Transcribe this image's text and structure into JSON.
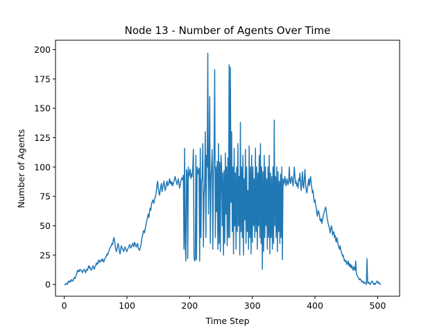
{
  "chart_data": {
    "type": "line",
    "title": "Node 13 - Number of Agents Over Time",
    "xlabel": "Time Step",
    "ylabel": "Number of Agents",
    "xlim": [
      -14,
      535
    ],
    "ylim": [
      -10,
      208
    ],
    "xticks": [
      0,
      100,
      200,
      300,
      400,
      500
    ],
    "yticks": [
      0,
      25,
      50,
      75,
      100,
      125,
      150,
      175,
      200
    ],
    "grid": false,
    "line_color": "#1f77b4",
    "series": [
      {
        "values": [
          0,
          0,
          0,
          1,
          1,
          0,
          2,
          3,
          2,
          3,
          2,
          4,
          4,
          3,
          3,
          5,
          6,
          5,
          6,
          8,
          9,
          12,
          11,
          12,
          11,
          13,
          12,
          12,
          11,
          10,
          12,
          12,
          13,
          11,
          10,
          12,
          13,
          12,
          14,
          16,
          14,
          15,
          13,
          12,
          13,
          15,
          16,
          14,
          13,
          15,
          16,
          18,
          17,
          19,
          18,
          21,
          20,
          19,
          20,
          21,
          20,
          22,
          20,
          19,
          21,
          22,
          23,
          24,
          26,
          25,
          27,
          28,
          30,
          31,
          32,
          33,
          35,
          34,
          37,
          40,
          38,
          34,
          30,
          28,
          30,
          33,
          35,
          32,
          28,
          26,
          30,
          33,
          31,
          30,
          29,
          28,
          31,
          32,
          30,
          29,
          28,
          30,
          31,
          32,
          34,
          33,
          31,
          32,
          33,
          35,
          34,
          32,
          36,
          35,
          33,
          32,
          34,
          35,
          31,
          30,
          29,
          31,
          33,
          36,
          40,
          42,
          45,
          46,
          44,
          47,
          50,
          53,
          55,
          58,
          60,
          57,
          62,
          65,
          63,
          68,
          70,
          72,
          71,
          69,
          73,
          74,
          76,
          80,
          85,
          88,
          82,
          78,
          76,
          80,
          84,
          86,
          79,
          82,
          85,
          88,
          84,
          80,
          82,
          86,
          88,
          84,
          85,
          87,
          90,
          86,
          88,
          85,
          87,
          84,
          86,
          88,
          90,
          92,
          89,
          87,
          85,
          88,
          90,
          86,
          82,
          85,
          88,
          90,
          91,
          89,
          93,
          30,
          116,
          35,
          20,
          98,
          95,
          22,
          100,
          92,
          95,
          98,
          90,
          94,
          92,
          100,
          115,
          25,
          20,
          22,
          110,
          21,
          100,
          94,
          97,
          99,
          20,
          116,
          40,
          88,
          90,
          120,
          32,
          75,
          85,
          130,
          40,
          110,
          100,
          197,
          60,
          95,
          160,
          35,
          90,
          100,
          115,
          30,
          95,
          110,
          183,
          40,
          100,
          62,
          105,
          30,
          120,
          35,
          104,
          28,
          110,
          100,
          50,
          95,
          25,
          97,
          35,
          112,
          60,
          100,
          33,
          108,
          40,
          187,
          40,
          185,
          70,
          130,
          45,
          100,
          26,
          116,
          50,
          95,
          30,
          100,
          45,
          120,
          50,
          92,
          25,
          138,
          45,
          100,
          40,
          110,
          25,
          90,
          55,
          115,
          35,
          100,
          45,
          80,
          30,
          118,
          40,
          100,
          26,
          110,
          36,
          100,
          50,
          90,
          40,
          116,
          45,
          100,
          30,
          95,
          50,
          110,
          40,
          120,
          35,
          100,
          13,
          96,
          28,
          110,
          40,
          100,
          50,
          90,
          30,
          100,
          40,
          110,
          26,
          95,
          40,
          92,
          30,
          100,
          35,
          140,
          50,
          92,
          40,
          100,
          28,
          96,
          45,
          88,
          35,
          94,
          40,
          100,
          21,
          90,
          85,
          88,
          92,
          86,
          84,
          90,
          88,
          85,
          87,
          100,
          88,
          86,
          90,
          92,
          88,
          84,
          90,
          100,
          92,
          86,
          88,
          84,
          86,
          82,
          90,
          88,
          95,
          85,
          80,
          88,
          96,
          84,
          82,
          90,
          98,
          86,
          80,
          78,
          82,
          86,
          90,
          84,
          88,
          92,
          86,
          82,
          78,
          80,
          74,
          70,
          72,
          68,
          65,
          60,
          58,
          63,
          62,
          60,
          55,
          54,
          56,
          52,
          55,
          58,
          60,
          62,
          64,
          66,
          63,
          58,
          55,
          52,
          50,
          48,
          44,
          46,
          50,
          48,
          42,
          44,
          45,
          40,
          42,
          38,
          36,
          40,
          37,
          34,
          32,
          30,
          33,
          30,
          28,
          26,
          24,
          25,
          22,
          20,
          21,
          19,
          20,
          17,
          18,
          20,
          16,
          18,
          15,
          17,
          14,
          16,
          14,
          12,
          15,
          14,
          12,
          20,
          10,
          8,
          7,
          6,
          5,
          4,
          5,
          4,
          3,
          2,
          3,
          2,
          1,
          2,
          1,
          1,
          0,
          22,
          2,
          1,
          2,
          1,
          0,
          1,
          2,
          3,
          2,
          1,
          0,
          1,
          0,
          1,
          2,
          3,
          2,
          1,
          2,
          1,
          0,
          0
        ]
      }
    ]
  }
}
